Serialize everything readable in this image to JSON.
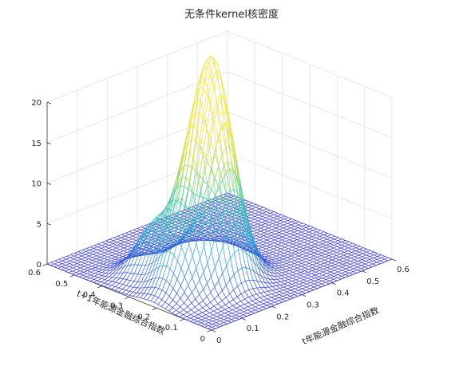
{
  "chart_data": {
    "type": "surface",
    "title": "无条件kernel核密度",
    "xlabel": "t年能源金融综合指数",
    "ylabel": "t+1年能源金融综合指数",
    "zlabel": "",
    "xlim": [
      0,
      0.6
    ],
    "ylim": [
      0,
      0.6
    ],
    "zlim": [
      0,
      20
    ],
    "x_ticks": [
      "0",
      "0.1",
      "0.2",
      "0.3",
      "0.4",
      "0.5",
      "0.6"
    ],
    "y_ticks": [
      "0",
      "0.1",
      "0.2",
      "0.3",
      "0.4",
      "0.5",
      "0.6"
    ],
    "z_ticks": [
      "0",
      "5",
      "10",
      "15",
      "20"
    ],
    "grid": true,
    "colormap": [
      "#3b3bd6",
      "#2aa6d6",
      "#41c9a6",
      "#c8dc4a",
      "#f2e23a"
    ],
    "peaks": [
      {
        "x": 0.195,
        "y": 0.2,
        "height": 19.3
      },
      {
        "x": 0.17,
        "y": 0.25,
        "height": 9.0
      },
      {
        "x": 0.26,
        "y": 0.23,
        "height": 8.5
      },
      {
        "x": 0.1,
        "y": 0.22,
        "height": 6.5
      },
      {
        "x": 0.13,
        "y": 0.35,
        "height": 6.0
      },
      {
        "x": 0.28,
        "y": 0.33,
        "height": 4.5
      }
    ]
  }
}
